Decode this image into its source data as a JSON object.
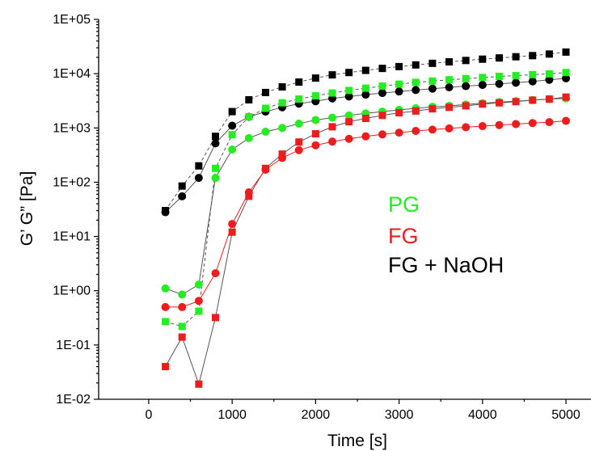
{
  "chart_data": {
    "type": "scatter",
    "xlabel": "Time [s]",
    "ylabel": "G’ G” [Pa]",
    "xlim": [
      -600,
      5300
    ],
    "ylim": [
      0.01,
      100000
    ],
    "y_scale": "log",
    "x_ticks": [
      0,
      1000,
      2000,
      3000,
      4000,
      5000
    ],
    "x_tick_labels": [
      "0",
      "1000",
      "2000",
      "3000",
      "4000",
      "5000"
    ],
    "y_ticks": [
      0.01,
      0.1,
      1,
      10,
      100,
      1000,
      10000,
      100000
    ],
    "y_tick_labels": [
      "1E-02",
      "1E-01",
      "1E+00",
      "1E+01",
      "1E+02",
      "1E+03",
      "1E+04",
      "1E+05"
    ],
    "grid": false,
    "legend": {
      "placement": "center-right",
      "entries": [
        {
          "label": "PG",
          "color": "#22ee22"
        },
        {
          "label": "FG",
          "color": "#ee1c1c"
        },
        {
          "label": "FG + NaOH",
          "color": "#000000"
        }
      ]
    },
    "series": [
      {
        "sample": "FG + NaOH",
        "modulus": "G'",
        "marker": "square",
        "color": "#000000",
        "line_color": "#555555",
        "line_style": "dashed",
        "points": [
          [
            200,
            30
          ],
          [
            400,
            85
          ],
          [
            600,
            200
          ],
          [
            800,
            700
          ],
          [
            1000,
            2000
          ],
          [
            1200,
            3300
          ],
          [
            1400,
            4500
          ],
          [
            1600,
            5700
          ],
          [
            1800,
            7000
          ],
          [
            2000,
            8300
          ],
          [
            2200,
            9500
          ],
          [
            2400,
            10500
          ],
          [
            2600,
            11500
          ],
          [
            2800,
            12500
          ],
          [
            3000,
            13500
          ],
          [
            3200,
            14500
          ],
          [
            3400,
            15500
          ],
          [
            3600,
            16500
          ],
          [
            3800,
            17500
          ],
          [
            4000,
            18500
          ],
          [
            4200,
            19500
          ],
          [
            4400,
            20500
          ],
          [
            4600,
            21500
          ],
          [
            4800,
            23000
          ],
          [
            5000,
            25000
          ]
        ]
      },
      {
        "sample": "FG + NaOH",
        "modulus": "G''",
        "marker": "circle",
        "color": "#000000",
        "line_color": "#555555",
        "line_style": "solid",
        "points": [
          [
            200,
            28
          ],
          [
            400,
            55
          ],
          [
            600,
            120
          ],
          [
            800,
            520
          ],
          [
            1000,
            1100
          ],
          [
            1200,
            1600
          ],
          [
            1400,
            2000
          ],
          [
            1600,
            2400
          ],
          [
            1800,
            2800
          ],
          [
            2000,
            3100
          ],
          [
            2200,
            3500
          ],
          [
            2400,
            3800
          ],
          [
            2600,
            4100
          ],
          [
            2800,
            4400
          ],
          [
            3000,
            4700
          ],
          [
            3200,
            5000
          ],
          [
            3400,
            5300
          ],
          [
            3600,
            5600
          ],
          [
            3800,
            5900
          ],
          [
            4000,
            6200
          ],
          [
            4200,
            6500
          ],
          [
            4400,
            6800
          ],
          [
            4600,
            7200
          ],
          [
            4800,
            7700
          ],
          [
            5000,
            8200
          ]
        ]
      },
      {
        "sample": "PG",
        "modulus": "G'",
        "marker": "square",
        "color": "#22ee22",
        "line_color": "#555555",
        "line_style": "dashed",
        "points": [
          [
            200,
            0.27
          ],
          [
            400,
            0.22
          ],
          [
            600,
            0.42
          ],
          [
            800,
            180
          ],
          [
            1000,
            750
          ],
          [
            1200,
            1600
          ],
          [
            1400,
            2300
          ],
          [
            1600,
            2900
          ],
          [
            1800,
            3400
          ],
          [
            2000,
            3900
          ],
          [
            2200,
            4400
          ],
          [
            2400,
            4900
          ],
          [
            2600,
            5400
          ],
          [
            2800,
            5900
          ],
          [
            3000,
            6400
          ],
          [
            3200,
            6900
          ],
          [
            3400,
            7300
          ],
          [
            3600,
            7700
          ],
          [
            3800,
            8100
          ],
          [
            4000,
            8500
          ],
          [
            4200,
            8900
          ],
          [
            4400,
            9200
          ],
          [
            4600,
            9600
          ],
          [
            4800,
            9900
          ],
          [
            5000,
            10500
          ]
        ]
      },
      {
        "sample": "PG",
        "modulus": "G''",
        "marker": "circle",
        "color": "#22ee22",
        "line_color": "#555555",
        "line_style": "solid",
        "points": [
          [
            200,
            1.1
          ],
          [
            400,
            0.85
          ],
          [
            600,
            1.3
          ],
          [
            800,
            120
          ],
          [
            1000,
            400
          ],
          [
            1200,
            650
          ],
          [
            1400,
            850
          ],
          [
            1600,
            1000
          ],
          [
            1800,
            1200
          ],
          [
            2000,
            1400
          ],
          [
            2200,
            1550
          ],
          [
            2400,
            1700
          ],
          [
            2600,
            1850
          ],
          [
            2800,
            2000
          ],
          [
            3000,
            2150
          ],
          [
            3200,
            2300
          ],
          [
            3400,
            2450
          ],
          [
            3600,
            2550
          ],
          [
            3800,
            2700
          ],
          [
            4000,
            2850
          ],
          [
            4200,
            3000
          ],
          [
            4400,
            3100
          ],
          [
            4600,
            3250
          ],
          [
            4800,
            3400
          ],
          [
            5000,
            3500
          ]
        ]
      },
      {
        "sample": "FG",
        "modulus": "G'",
        "marker": "square",
        "color": "#ee1c1c",
        "line_color": "#555555",
        "line_style": "solid",
        "points": [
          [
            200,
            0.04
          ],
          [
            400,
            0.14
          ],
          [
            600,
            0.019
          ],
          [
            800,
            0.32
          ],
          [
            1000,
            12
          ],
          [
            1200,
            55
          ],
          [
            1400,
            180
          ],
          [
            1600,
            330
          ],
          [
            1800,
            550
          ],
          [
            2000,
            780
          ],
          [
            2200,
            1050
          ],
          [
            2400,
            1300
          ],
          [
            2600,
            1500
          ],
          [
            2800,
            1700
          ],
          [
            3000,
            1900
          ],
          [
            3200,
            2050
          ],
          [
            3400,
            2250
          ],
          [
            3600,
            2400
          ],
          [
            3800,
            2550
          ],
          [
            4000,
            2750
          ],
          [
            4200,
            2900
          ],
          [
            4400,
            3050
          ],
          [
            4600,
            3250
          ],
          [
            4800,
            3400
          ],
          [
            5000,
            3700
          ]
        ]
      },
      {
        "sample": "FG",
        "modulus": "G''",
        "marker": "circle",
        "color": "#ee1c1c",
        "line_color": "#ee1c1c",
        "line_style": "solid",
        "points": [
          [
            200,
            0.5
          ],
          [
            400,
            0.5
          ],
          [
            600,
            0.65
          ],
          [
            800,
            2.1
          ],
          [
            1000,
            17
          ],
          [
            1200,
            65
          ],
          [
            1400,
            170
          ],
          [
            1600,
            280
          ],
          [
            1800,
            390
          ],
          [
            2000,
            480
          ],
          [
            2200,
            560
          ],
          [
            2400,
            630
          ],
          [
            2600,
            700
          ],
          [
            2800,
            760
          ],
          [
            3000,
            820
          ],
          [
            3200,
            880
          ],
          [
            3400,
            930
          ],
          [
            3600,
            980
          ],
          [
            3800,
            1030
          ],
          [
            4000,
            1080
          ],
          [
            4200,
            1130
          ],
          [
            4400,
            1180
          ],
          [
            4600,
            1230
          ],
          [
            4800,
            1280
          ],
          [
            5000,
            1350
          ]
        ]
      }
    ]
  }
}
